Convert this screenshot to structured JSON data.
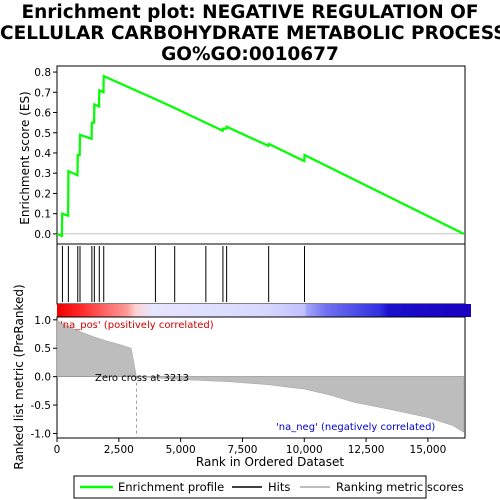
{
  "title_lines": [
    "Enrichment plot: NEGATIVE REGULATION OF",
    "CELLULAR CARBOHYDRATE METABOLIC PROCESS%",
    "GO%GO:0010677"
  ],
  "chart_data": {
    "type": "line",
    "x_range": [
      0,
      16500
    ],
    "x_ticks": [
      "0",
      "2,500",
      "5,000",
      "7,500",
      "10,000",
      "12,500",
      "15,000"
    ],
    "x_tick_values": [
      0,
      2500,
      5000,
      7500,
      10000,
      12500,
      15000
    ],
    "xlabel": "Rank in Ordered Dataset",
    "es_panel": {
      "ylabel": "Enrichment score (ES)",
      "ylim": [
        -0.05,
        0.83
      ],
      "y_ticks": [
        "0.0",
        "0.1",
        "0.2",
        "0.3",
        "0.4",
        "0.5",
        "0.6",
        "0.7",
        "0.8"
      ],
      "y_tick_values": [
        0,
        0.1,
        0.2,
        0.3,
        0.4,
        0.5,
        0.6,
        0.7,
        0.8
      ],
      "series_color": "#00ff00",
      "points": [
        [
          0,
          0.0
        ],
        [
          200,
          -0.01
        ],
        [
          210,
          0.1
        ],
        [
          450,
          0.09
        ],
        [
          460,
          0.31
        ],
        [
          830,
          0.29
        ],
        [
          840,
          0.39
        ],
        [
          920,
          0.39
        ],
        [
          930,
          0.49
        ],
        [
          1400,
          0.47
        ],
        [
          1410,
          0.55
        ],
        [
          1500,
          0.55
        ],
        [
          1510,
          0.64
        ],
        [
          1700,
          0.63
        ],
        [
          1710,
          0.71
        ],
        [
          1880,
          0.7
        ],
        [
          1890,
          0.78
        ],
        [
          4000,
          0.665
        ],
        [
          4800,
          0.62
        ],
        [
          6000,
          0.55
        ],
        [
          6700,
          0.51
        ],
        [
          6710,
          0.52
        ],
        [
          6850,
          0.52
        ],
        [
          6860,
          0.53
        ],
        [
          8550,
          0.435
        ],
        [
          8560,
          0.445
        ],
        [
          10000,
          0.36
        ],
        [
          10010,
          0.39
        ],
        [
          16450,
          0.0
        ]
      ]
    },
    "hits": [
      220,
      460,
      840,
      930,
      1410,
      1510,
      1710,
      1890,
      3980,
      4760,
      6020,
      6710,
      6860,
      8560,
      10010
    ],
    "ranked_panel": {
      "ylabel": "Ranked list metric (PreRanked)",
      "ylim": [
        -1.08,
        1.05
      ],
      "y_ticks": [
        "1.0",
        "0.5",
        "0.0",
        "-0.5",
        "-1.0"
      ],
      "y_tick_values": [
        1.0,
        0.5,
        0.0,
        -0.5,
        -1.0
      ],
      "zero_cross_label": "Zero cross at 3213",
      "zero_cross": 3213,
      "pos_label": "'na_pos' (positively correlated)",
      "neg_label": "'na_neg' (negatively correlated)",
      "profile": [
        [
          0,
          1.0
        ],
        [
          150,
          0.95
        ],
        [
          500,
          0.87
        ],
        [
          1000,
          0.78
        ],
        [
          1500,
          0.7
        ],
        [
          2000,
          0.63
        ],
        [
          2500,
          0.57
        ],
        [
          3000,
          0.5
        ],
        [
          3213,
          0.0
        ],
        [
          5000,
          -0.05
        ],
        [
          7000,
          -0.09
        ],
        [
          8500,
          -0.14
        ],
        [
          10000,
          -0.22
        ],
        [
          11000,
          -0.32
        ],
        [
          12000,
          -0.45
        ],
        [
          13500,
          -0.58
        ],
        [
          15000,
          -0.72
        ],
        [
          16000,
          -0.86
        ],
        [
          16450,
          -0.98
        ]
      ]
    },
    "legend": [
      "Enrichment profile",
      "Hits",
      "Ranking metric scores"
    ]
  }
}
